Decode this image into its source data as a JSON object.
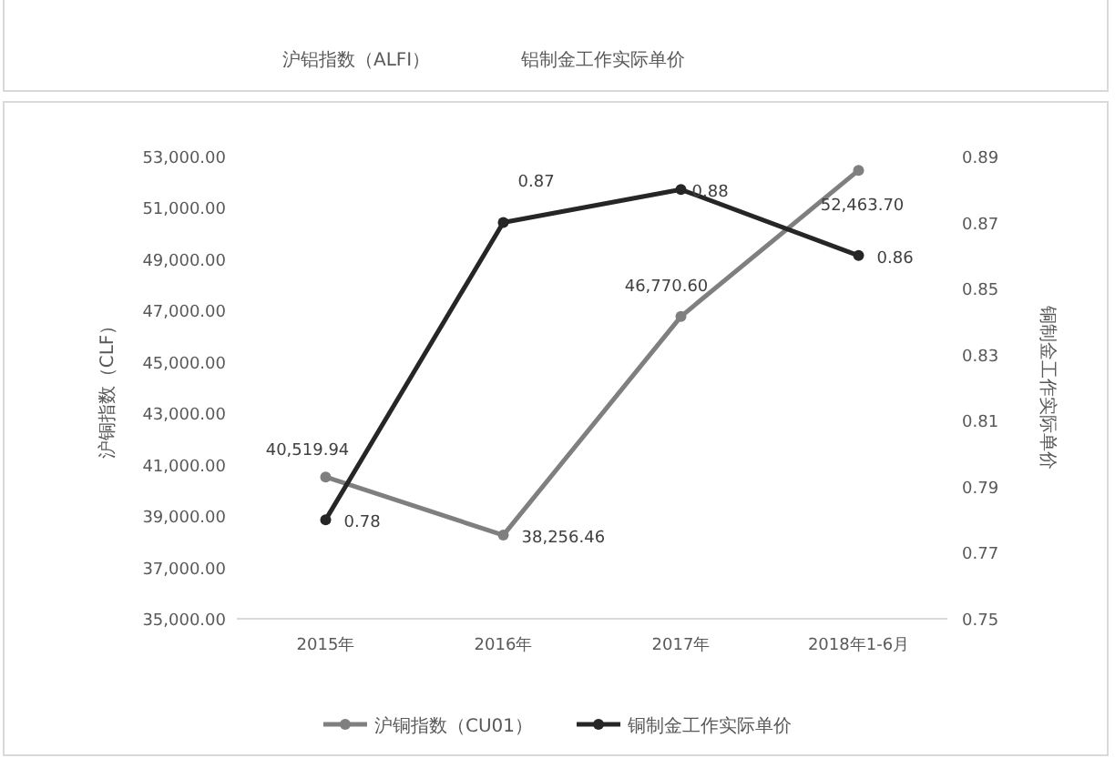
{
  "chart_data": [
    {
      "type": "other",
      "annotations": [
        "沪铝指数（ALFI）",
        "铝制金工作实际单价"
      ]
    },
    {
      "type": "line",
      "categories": [
        "2015年",
        "2016年",
        "2017年",
        "2018年1-6月"
      ],
      "xlabel": null,
      "ylabel": "沪铜指数（CLF）",
      "y2label": "铜制金工作实际单价",
      "ylim": [
        35000,
        53000
      ],
      "yticks": [
        {
          "value": 35000,
          "label": "35,000.00"
        },
        {
          "value": 37000,
          "label": "37,000.00"
        },
        {
          "value": 39000,
          "label": "39,000.00"
        },
        {
          "value": 41000,
          "label": "41,000.00"
        },
        {
          "value": 43000,
          "label": "43,000.00"
        },
        {
          "value": 45000,
          "label": "45,000.00"
        },
        {
          "value": 47000,
          "label": "47,000.00"
        },
        {
          "value": 49000,
          "label": "49,000.00"
        },
        {
          "value": 51000,
          "label": "51,000.00"
        },
        {
          "value": 53000,
          "label": "53,000.00"
        }
      ],
      "y2lim": [
        0.75,
        0.89
      ],
      "y2ticks": [
        0.75,
        0.77,
        0.79,
        0.81,
        0.83,
        0.85,
        0.87,
        0.89
      ],
      "series": [
        {
          "name": "沪铜指数（CU01）",
          "color": "#7f7f7f",
          "values": [
            40519.94,
            38256.46,
            46770.6,
            52463.7
          ],
          "value_labels": [
            "40,519.94",
            "38,256.46",
            "46,770.60",
            "52,463.70"
          ]
        },
        {
          "name": "铜制金工作实际单价",
          "color": "#262626",
          "axis": "y2",
          "values": [
            0.78,
            0.87,
            0.88,
            0.86
          ],
          "value_labels": [
            "0.78",
            "0.87",
            "0.88",
            "0.86"
          ]
        }
      ],
      "marker": "circle",
      "line_style": "solid",
      "legend": "bottom",
      "grid": false
    }
  ]
}
